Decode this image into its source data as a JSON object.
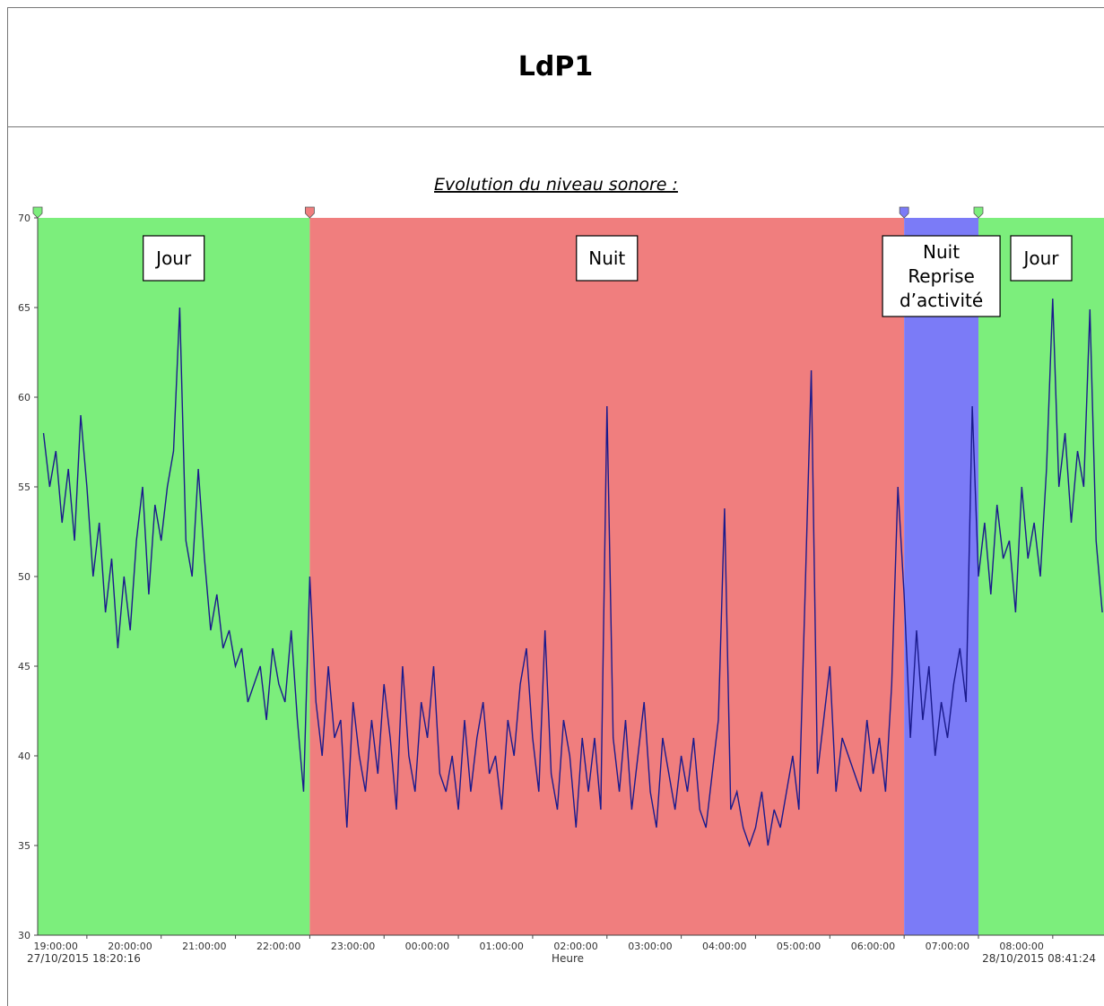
{
  "header": {
    "title": "LdP1"
  },
  "chart_data": {
    "type": "line",
    "subtitle": "Evolution du niveau sonore :",
    "xlabel": "Heure",
    "xlim": [
      "27/10/2015 18:20:16",
      "28/10/2015 08:41:24"
    ],
    "xticks": [
      "19:00:00",
      "20:00:00",
      "21:00:00",
      "22:00:00",
      "23:00:00",
      "00:00:00",
      "01:00:00",
      "02:00:00",
      "03:00:00",
      "04:00:00",
      "05:00:00",
      "06:00:00",
      "07:00:00",
      "08:00:00"
    ],
    "ylim": [
      30,
      70
    ],
    "yticks": [
      30,
      35,
      40,
      45,
      50,
      55,
      60,
      65,
      70
    ],
    "bands": [
      {
        "label": [
          "Jour"
        ],
        "start": "18:20:16",
        "end": "22:00:00",
        "color": "#7cee7c"
      },
      {
        "label": [
          "Nuit"
        ],
        "start": "22:00:00",
        "end": "06:00:00",
        "color": "#f07e7e"
      },
      {
        "label": [
          "Nuit",
          "Reprise",
          "d’activité"
        ],
        "start": "06:00:00",
        "end": "07:00:00",
        "color": "#7b7bf7"
      },
      {
        "label": [
          "Jour"
        ],
        "start": "07:00:00",
        "end": "08:41:24",
        "color": "#7cee7c"
      }
    ],
    "x": [
      "18:25",
      "18:30",
      "18:35",
      "18:40",
      "18:45",
      "18:50",
      "18:55",
      "19:00",
      "19:05",
      "19:10",
      "19:15",
      "19:20",
      "19:25",
      "19:30",
      "19:35",
      "19:40",
      "19:45",
      "19:50",
      "19:55",
      "20:00",
      "20:05",
      "20:10",
      "20:15",
      "20:20",
      "20:25",
      "20:30",
      "20:35",
      "20:40",
      "20:45",
      "20:50",
      "20:55",
      "21:00",
      "21:05",
      "21:10",
      "21:15",
      "21:20",
      "21:25",
      "21:30",
      "21:35",
      "21:40",
      "21:45",
      "21:50",
      "21:55",
      "22:00",
      "22:05",
      "22:10",
      "22:15",
      "22:20",
      "22:25",
      "22:30",
      "22:35",
      "22:40",
      "22:45",
      "22:50",
      "22:55",
      "23:00",
      "23:05",
      "23:10",
      "23:15",
      "23:20",
      "23:25",
      "23:30",
      "23:35",
      "23:40",
      "23:45",
      "23:50",
      "23:55",
      "00:00",
      "00:05",
      "00:10",
      "00:15",
      "00:20",
      "00:25",
      "00:30",
      "00:35",
      "00:40",
      "00:45",
      "00:50",
      "00:55",
      "01:00",
      "01:05",
      "01:10",
      "01:15",
      "01:20",
      "01:25",
      "01:30",
      "01:35",
      "01:40",
      "01:45",
      "01:50",
      "01:55",
      "02:00",
      "02:05",
      "02:10",
      "02:15",
      "02:20",
      "02:25",
      "02:30",
      "02:35",
      "02:40",
      "02:45",
      "02:50",
      "02:55",
      "03:00",
      "03:05",
      "03:10",
      "03:15",
      "03:20",
      "03:25",
      "03:30",
      "03:35",
      "03:40",
      "03:45",
      "03:50",
      "03:55",
      "04:00",
      "04:05",
      "04:10",
      "04:15",
      "04:20",
      "04:25",
      "04:30",
      "04:35",
      "04:40",
      "04:45",
      "04:50",
      "04:55",
      "05:00",
      "05:05",
      "05:10",
      "05:15",
      "05:20",
      "05:25",
      "05:30",
      "05:35",
      "05:40",
      "05:45",
      "05:50",
      "05:55",
      "06:00",
      "06:05",
      "06:10",
      "06:15",
      "06:20",
      "06:25",
      "06:30",
      "06:35",
      "06:40",
      "06:45",
      "06:50",
      "06:55",
      "07:00",
      "07:05",
      "07:10",
      "07:15",
      "07:20",
      "07:25",
      "07:30",
      "07:35",
      "07:40",
      "07:45",
      "07:50",
      "07:55",
      "08:00",
      "08:05",
      "08:10",
      "08:15",
      "08:20",
      "08:25",
      "08:30",
      "08:35",
      "08:40"
    ],
    "series": [
      {
        "color": "#1a1a8c",
        "values": [
          58,
          55,
          57,
          53,
          56,
          52,
          59,
          55,
          50,
          53,
          48,
          51,
          46,
          50,
          47,
          52,
          55,
          49,
          54,
          52,
          55,
          57,
          65,
          52,
          50,
          56,
          51,
          47,
          49,
          46,
          47,
          45,
          46,
          43,
          44,
          45,
          42,
          46,
          44,
          43,
          47,
          42,
          38,
          50,
          43,
          40,
          45,
          41,
          42,
          36,
          43,
          40,
          38,
          42,
          39,
          44,
          41,
          37,
          45,
          40,
          38,
          43,
          41,
          45,
          39,
          38,
          40,
          37,
          42,
          38,
          41,
          43,
          39,
          40,
          37,
          42,
          40,
          44,
          46,
          41,
          38,
          47,
          39,
          37,
          42,
          40,
          36,
          41,
          38,
          41,
          37,
          59.5,
          41,
          38,
          42,
          37,
          40,
          43,
          38,
          36,
          41,
          39,
          37,
          40,
          38,
          41,
          37,
          36,
          39,
          42,
          53.8,
          37,
          38,
          36,
          35,
          36,
          38,
          35,
          37,
          36,
          38,
          40,
          37,
          49,
          61.5,
          39,
          42,
          45,
          38,
          41,
          40,
          39,
          38,
          42,
          39,
          41,
          38,
          44,
          55,
          49,
          41,
          47,
          42,
          45,
          40,
          43,
          41,
          44,
          46,
          43,
          59.5,
          50,
          53,
          49,
          54,
          51,
          52,
          48,
          55,
          51,
          53,
          50,
          56,
          65.5,
          55,
          58,
          53,
          57,
          55,
          64.9,
          52,
          48
        ]
      }
    ]
  }
}
